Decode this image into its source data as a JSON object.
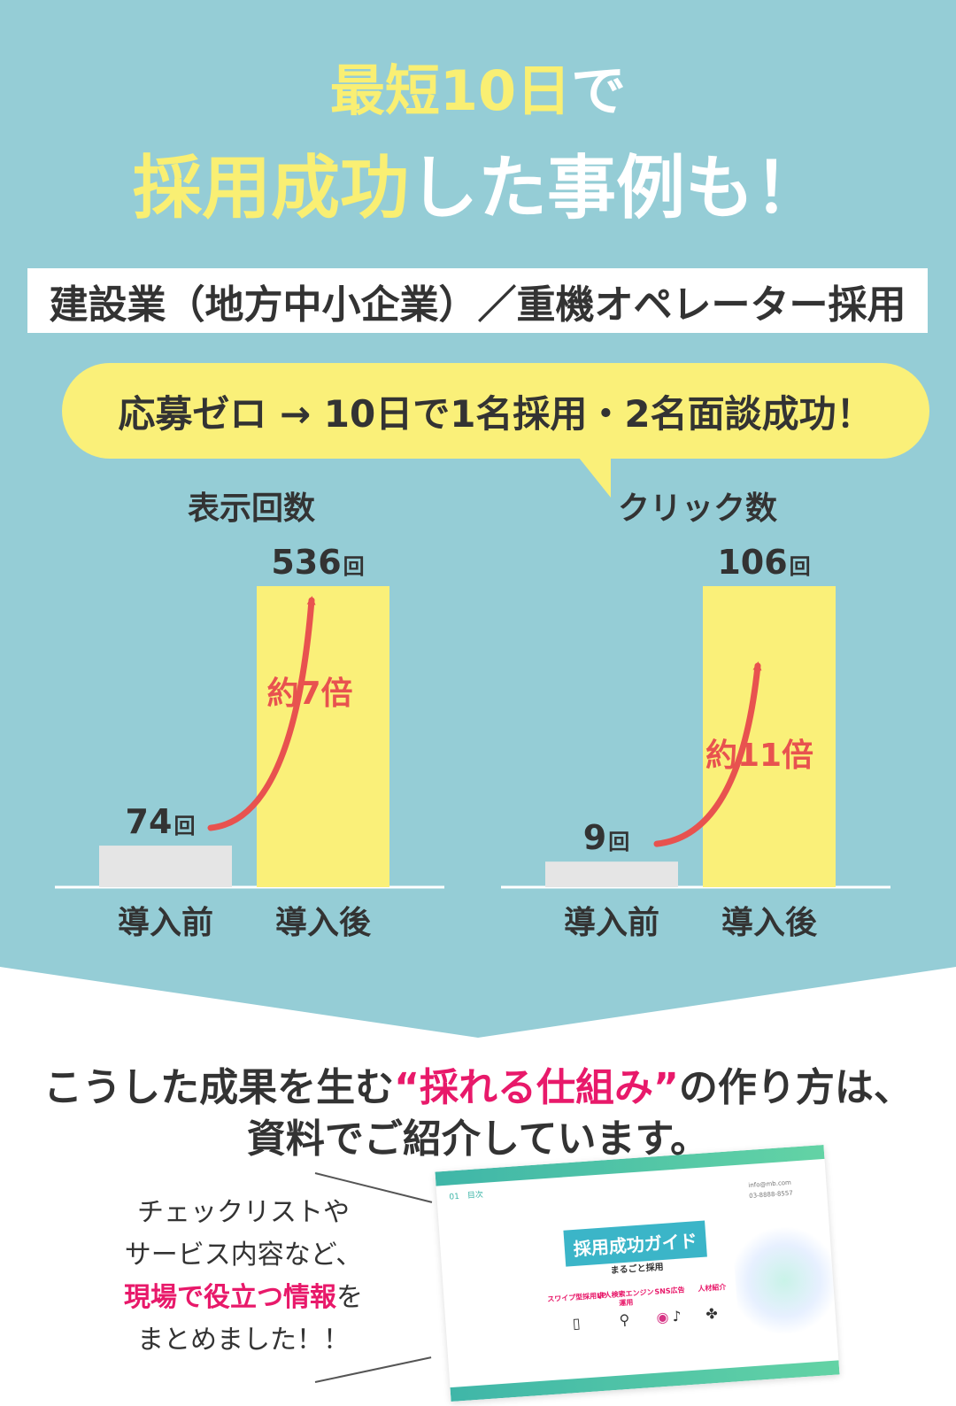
{
  "headline": {
    "line1_accent": "最短10日",
    "line1_rest": "で",
    "line2_accent": "採用成功",
    "line2_rest": "した事例も！"
  },
  "case_label": "建設業（地方中小企業）／重機オペレーター採用",
  "result_bubble": "応募ゼロ → 10日で1名採用・2名面談成功！",
  "chart_data": [
    {
      "type": "bar",
      "title": "表示回数",
      "categories": [
        "導入前",
        "導入後"
      ],
      "values": [
        74,
        536
      ],
      "value_labels": [
        "74",
        "536"
      ],
      "unit": "回",
      "annotation": "約7倍",
      "colors": [
        "#e5e5e5",
        "#faf079"
      ]
    },
    {
      "type": "bar",
      "title": "クリック数",
      "categories": [
        "導入前",
        "導入後"
      ],
      "values": [
        9,
        106
      ],
      "value_labels": [
        "9",
        "106"
      ],
      "unit": "回",
      "annotation": "約11倍",
      "colors": [
        "#e5e5e5",
        "#faf079"
      ]
    }
  ],
  "message": {
    "part1": "こうした成果を生む",
    "accent": "“採れる仕組み”",
    "part2": "の作り方は、",
    "line2": "資料でご紹介しています。"
  },
  "side_note": {
    "line1": "チェックリストや",
    "line2": "サービス内容など、",
    "accent": "現場で役立つ情報",
    "accent_suffix": "を",
    "line4": "まとめました！！"
  },
  "document": {
    "toc": "01　目次",
    "contact1": "info@mb.com",
    "contact2": "03-8888-8557",
    "title": "採用成功ガイド",
    "subtitle": "まるごと採用",
    "items": [
      "スワイプ型採用LP",
      "求人検索エンジン運用",
      "SNS広告",
      "人材紹介"
    ]
  },
  "colors": {
    "background_teal": "#95cdd6",
    "accent_yellow": "#f9ef73",
    "accent_pink": "#e8196a",
    "arrow_red": "#e8524f"
  }
}
